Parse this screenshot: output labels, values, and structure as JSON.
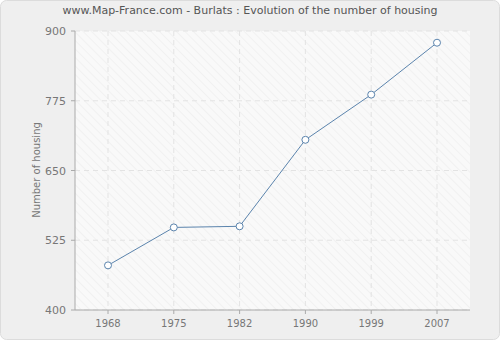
{
  "chart_data": {
    "type": "line",
    "title": "www.Map-France.com - Burlats : Evolution of the number of housing",
    "y_label": "Number of housing",
    "categories": [
      "1968",
      "1975",
      "1982",
      "1990",
      "1999",
      "2007"
    ],
    "values": [
      480,
      548,
      550,
      705,
      786,
      879
    ],
    "color": "#5b84ad",
    "marker": "circle",
    "ylim": [
      400,
      900
    ],
    "yticks": [
      400,
      525,
      650,
      775,
      900
    ],
    "grid": true
  }
}
